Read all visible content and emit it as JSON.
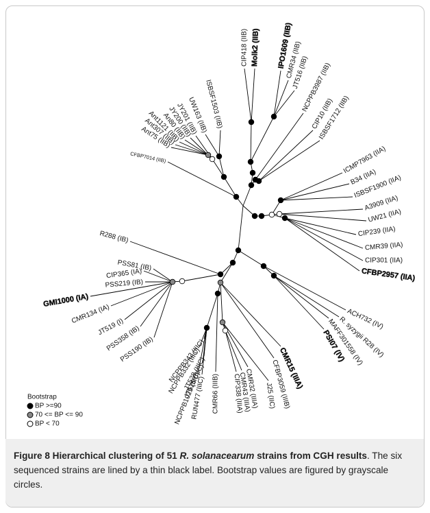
{
  "figure": {
    "leaves": [
      "CIP418 (IIB)",
      "Molk2 (IIB)",
      "IPO1609 (IIB)",
      "CMR34 (IIB)",
      "JT516 (IIB)",
      "NCPPB3987 (IIB)",
      "CIP10 (IIB)",
      "ISBSF1712 (IIB)",
      "ICMP7963 (IIA)",
      "B34 (IIA)",
      "ISBSF1900 (IIA)",
      "A3909 (IIA)",
      "UW21 (IIA)",
      "CIP239 (IIA)",
      "CMR39 (IIA)",
      "CIP301 (IIA)",
      "CFBP2957 (IIA)",
      "ACH732 (IV)",
      "R. syzygii R28 (IV)",
      "MAFF301558 (IV)",
      "PSI07 (IV)",
      "CMR15 (IIIA)",
      "CFBP3059 (IIIB)",
      "J25 (IIC)",
      "CMR32 (IIIA)",
      "CMR43 (IIIA)",
      "CIP338 (IIIA)",
      "CMR66 (IIIB)",
      "RUN477 (IIIC)",
      "NCPPB1029 (IIIC)",
      "JT525 (IIIC)",
      "JT528 (IIIC)",
      "NCPPB332 (IIIC)",
      "NCPPB342 (IIIC)",
      "PSS190 (IB)",
      "PSS358 (IB)",
      "JT519 (I)",
      "CMR134 (IA)",
      "GMI1000 (IA)",
      "PSS219 (IB)",
      "CIP365 (IA)",
      "PSS81 (IB)",
      "R288 (IB)",
      "CFBP7014 (IIB)",
      "Ant75 (IIB)",
      "Ant307 (IIB)",
      "Ant1121 (IIB)",
      "An80 (IIB)",
      "JY200 (IIB)",
      "JY201 (IIB)",
      "UW163 (IIB)",
      "ISBSF1503 (IIB)"
    ],
    "legend": {
      "title": "Bootstrap",
      "items": [
        "BP >=90",
        "70 <= BP <= 90",
        "BP < 70"
      ]
    }
  },
  "caption": {
    "label": "Figure 8",
    "title_1": "Hierarchical clustering of 51",
    "species": "R. solanacearum",
    "title_2": "strains from CGH results",
    "text": ". The six sequenced strains are lined by a thin black label. Bootstrap values are figured by grayscale circles."
  }
}
